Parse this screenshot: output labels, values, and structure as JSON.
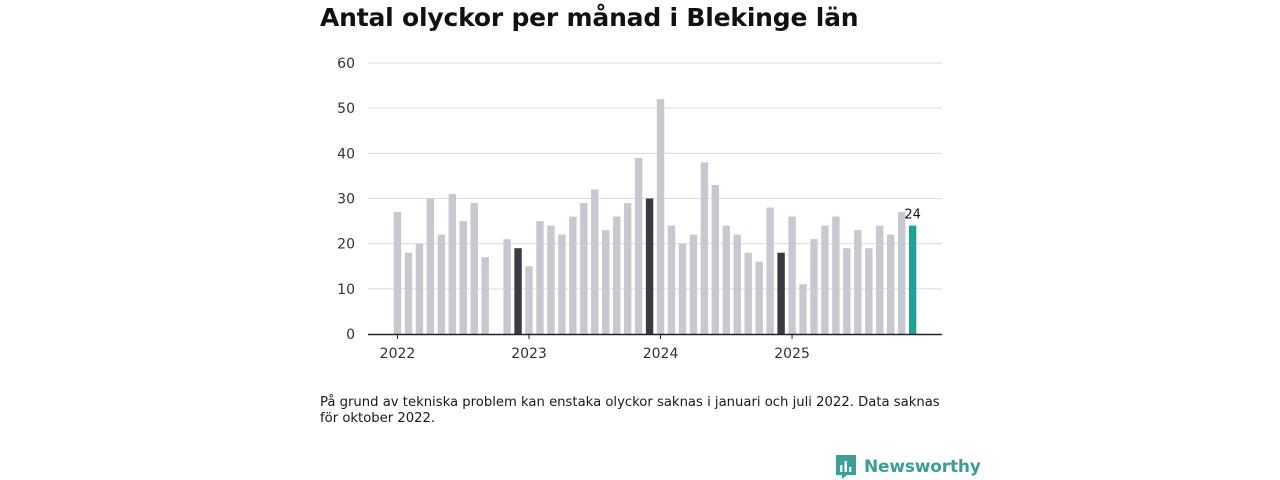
{
  "title": "Antal olyckor per månad i Blekinge län",
  "footnote": "På grund av tekniska problem kan enstaka olyckor saknas i januari och juli 2022. Data saknas för oktober 2022.",
  "brand": {
    "name": "Newsworthy",
    "icon": "bar-chart-speech-bubble-icon",
    "color": "#3d9e97"
  },
  "chart_data": {
    "type": "bar",
    "title": "Antal olyckor per månad i Blekinge län",
    "xlabel": "",
    "ylabel": "",
    "ylim": [
      0,
      60
    ],
    "yticks": [
      0,
      10,
      20,
      30,
      40,
      50,
      60
    ],
    "grid": true,
    "colors": {
      "default": "#c8c8d0",
      "december": "#3a3a42",
      "latest": "#1aa39a"
    },
    "year_labels": [
      {
        "label": "2022",
        "month": "2022-01"
      },
      {
        "label": "2023",
        "month": "2023-01"
      },
      {
        "label": "2024",
        "month": "2024-01"
      },
      {
        "label": "2025",
        "month": "2025-01"
      }
    ],
    "last_value_label": "24",
    "categories": [
      "2022-01",
      "2022-02",
      "2022-03",
      "2022-04",
      "2022-05",
      "2022-06",
      "2022-07",
      "2022-08",
      "2022-09",
      "2022-10",
      "2022-11",
      "2022-12",
      "2023-01",
      "2023-02",
      "2023-03",
      "2023-04",
      "2023-05",
      "2023-06",
      "2023-07",
      "2023-08",
      "2023-09",
      "2023-10",
      "2023-11",
      "2023-12",
      "2024-01",
      "2024-02",
      "2024-03",
      "2024-04",
      "2024-05",
      "2024-06",
      "2024-07",
      "2024-08",
      "2024-09",
      "2024-10",
      "2024-11",
      "2024-12",
      "2025-01",
      "2025-02",
      "2025-03",
      "2025-04",
      "2025-05",
      "2025-06",
      "2025-07",
      "2025-08",
      "2025-09",
      "2025-10",
      "2025-11",
      "2025-12"
    ],
    "values": [
      27,
      18,
      20,
      30,
      22,
      31,
      25,
      29,
      17,
      null,
      21,
      19,
      15,
      25,
      24,
      22,
      26,
      29,
      32,
      23,
      26,
      29,
      39,
      30,
      52,
      24,
      20,
      22,
      38,
      33,
      24,
      22,
      18,
      16,
      28,
      18,
      26,
      11,
      21,
      24,
      26,
      19,
      23,
      19,
      24,
      22,
      27,
      24
    ]
  }
}
